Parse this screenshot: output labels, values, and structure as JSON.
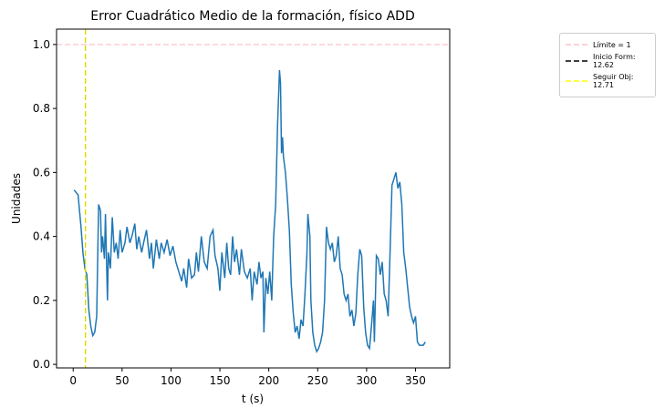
{
  "chart_data": {
    "type": "line",
    "title": "Error Cuadrático Medio de la formación, físico ADD",
    "x_label": "t (s)",
    "y_label": "Unidades",
    "x": [
      1,
      5,
      8,
      10,
      12,
      14,
      16,
      18,
      20,
      22,
      24,
      26,
      28,
      29,
      30,
      32,
      33,
      35,
      36,
      38,
      40,
      42,
      44,
      46,
      48,
      50,
      53,
      55,
      58,
      60,
      63,
      65,
      67,
      70,
      72,
      75,
      78,
      80,
      82,
      85,
      88,
      90,
      93,
      96,
      99,
      102,
      105,
      108,
      111,
      113,
      116,
      118,
      121,
      124,
      126,
      128,
      131,
      134,
      137,
      140,
      143,
      145,
      148,
      150,
      152,
      155,
      157,
      159,
      161,
      163,
      165,
      167,
      170,
      172,
      175,
      178,
      181,
      183,
      185,
      188,
      190,
      192,
      194,
      195,
      197,
      199,
      201,
      203,
      205,
      207,
      209,
      211,
      212,
      213,
      214,
      215,
      217,
      219,
      221,
      223,
      225,
      227,
      229,
      231,
      233,
      235,
      237,
      239,
      240,
      242,
      243,
      245,
      247,
      249,
      251,
      253,
      255,
      257,
      259,
      261,
      263,
      265,
      267,
      269,
      271,
      273,
      275,
      277,
      279,
      281,
      283,
      285,
      287,
      289,
      291,
      293,
      295,
      297,
      299,
      301,
      303,
      305,
      307,
      308,
      310,
      312,
      314,
      316,
      318,
      320,
      322,
      324,
      326,
      328,
      330,
      332,
      334,
      336,
      338,
      340,
      342,
      344,
      346,
      348,
      350,
      352,
      354,
      356,
      358,
      360
    ],
    "series": [
      {
        "color": "#1f77b4",
        "values": [
          0.545,
          0.53,
          0.43,
          0.35,
          0.3,
          0.28,
          0.17,
          0.12,
          0.09,
          0.1,
          0.15,
          0.5,
          0.48,
          0.35,
          0.4,
          0.33,
          0.47,
          0.2,
          0.35,
          0.3,
          0.46,
          0.35,
          0.38,
          0.33,
          0.42,
          0.35,
          0.38,
          0.43,
          0.38,
          0.4,
          0.44,
          0.36,
          0.4,
          0.35,
          0.38,
          0.42,
          0.33,
          0.38,
          0.3,
          0.39,
          0.33,
          0.38,
          0.35,
          0.39,
          0.34,
          0.37,
          0.32,
          0.29,
          0.26,
          0.3,
          0.24,
          0.33,
          0.27,
          0.28,
          0.35,
          0.29,
          0.4,
          0.32,
          0.3,
          0.4,
          0.42,
          0.34,
          0.3,
          0.23,
          0.35,
          0.27,
          0.38,
          0.3,
          0.28,
          0.4,
          0.32,
          0.36,
          0.28,
          0.36,
          0.29,
          0.27,
          0.3,
          0.2,
          0.29,
          0.25,
          0.32,
          0.27,
          0.29,
          0.1,
          0.27,
          0.22,
          0.29,
          0.2,
          0.4,
          0.5,
          0.75,
          0.92,
          0.88,
          0.66,
          0.71,
          0.65,
          0.6,
          0.52,
          0.42,
          0.25,
          0.16,
          0.1,
          0.12,
          0.08,
          0.14,
          0.12,
          0.22,
          0.35,
          0.47,
          0.4,
          0.2,
          0.1,
          0.06,
          0.04,
          0.05,
          0.07,
          0.1,
          0.2,
          0.43,
          0.38,
          0.36,
          0.38,
          0.32,
          0.34,
          0.4,
          0.3,
          0.28,
          0.22,
          0.2,
          0.22,
          0.15,
          0.17,
          0.12,
          0.16,
          0.28,
          0.36,
          0.34,
          0.18,
          0.1,
          0.06,
          0.05,
          0.12,
          0.2,
          0.07,
          0.34,
          0.33,
          0.28,
          0.32,
          0.22,
          0.2,
          0.15,
          0.35,
          0.56,
          0.58,
          0.6,
          0.55,
          0.57,
          0.5,
          0.35,
          0.3,
          0.24,
          0.18,
          0.15,
          0.13,
          0.15,
          0.07,
          0.06,
          0.06,
          0.06,
          0.07
        ]
      }
    ],
    "ref_lines": [
      {
        "name": "Límite = 1",
        "orientation": "horizontal",
        "value": 1,
        "color": "pink"
      },
      {
        "name": "Inicio Form:\n12.62",
        "orientation": "vertical",
        "value": 12.62,
        "color": "black"
      },
      {
        "name": "Seguir Obj:\n12.71",
        "orientation": "vertical",
        "value": 12.71,
        "color": "yellow"
      }
    ],
    "xlim": [
      -17,
      385
    ],
    "ylim": [
      -0.011,
      1.048
    ],
    "xticks": [
      0,
      50,
      100,
      150,
      200,
      250,
      300,
      350
    ],
    "yticks": [
      {
        "value": 0,
        "label": "0.0"
      },
      0.2,
      0.4,
      0.6,
      0.8,
      {
        "value": 1,
        "label": "1.0"
      }
    ]
  }
}
